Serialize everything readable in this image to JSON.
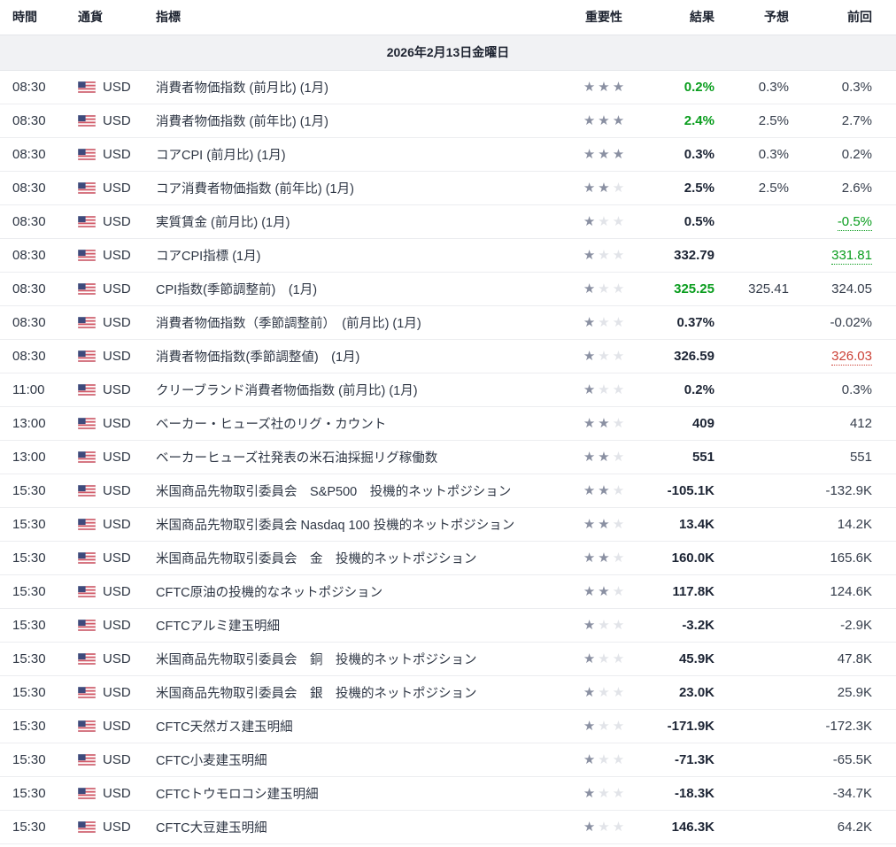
{
  "table": {
    "columns": {
      "time": "時間",
      "currency": "通貨",
      "indicator": "指標",
      "importance": "重要性",
      "actual": "結果",
      "forecast": "予想",
      "previous": "前回"
    },
    "date_header": "2026年2月13日金曜日",
    "star_glyph": "★",
    "flag_icon": "us-flag",
    "colors": {
      "positive_green": "#0a9d1e",
      "revised_red": "#cc4237",
      "star_on": "#8a90a2",
      "star_off": "#e2e4e9",
      "date_row_bg": "#f1f2f4"
    },
    "rows": [
      {
        "time": "08:30",
        "currency": "USD",
        "indicator": "消費者物価指数 (前月比) (1月)",
        "stars": 3,
        "actual": "0.2%",
        "actual_color": "green",
        "forecast": "0.3%",
        "previous": "0.3%",
        "previous_style": "normal"
      },
      {
        "time": "08:30",
        "currency": "USD",
        "indicator": "消費者物価指数 (前年比) (1月)",
        "stars": 3,
        "actual": "2.4%",
        "actual_color": "green",
        "forecast": "2.5%",
        "previous": "2.7%",
        "previous_style": "normal"
      },
      {
        "time": "08:30",
        "currency": "USD",
        "indicator": "コアCPI (前月比) (1月)",
        "stars": 3,
        "actual": "0.3%",
        "actual_color": "dark",
        "forecast": "0.3%",
        "previous": "0.2%",
        "previous_style": "normal"
      },
      {
        "time": "08:30",
        "currency": "USD",
        "indicator": "コア消費者物価指数 (前年比) (1月)",
        "stars": 2,
        "actual": "2.5%",
        "actual_color": "dark",
        "forecast": "2.5%",
        "previous": "2.6%",
        "previous_style": "normal"
      },
      {
        "time": "08:30",
        "currency": "USD",
        "indicator": "実質賃金 (前月比) (1月)",
        "stars": 1,
        "actual": "0.5%",
        "actual_color": "dark",
        "forecast": "",
        "previous": "-0.5%",
        "previous_style": "green-revised"
      },
      {
        "time": "08:30",
        "currency": "USD",
        "indicator": "コアCPI指標 (1月)",
        "stars": 1,
        "actual": "332.79",
        "actual_color": "dark",
        "forecast": "",
        "previous": "331.81",
        "previous_style": "green-revised"
      },
      {
        "time": "08:30",
        "currency": "USD",
        "indicator": "CPI指数(季節調整前)　(1月)",
        "stars": 1,
        "actual": "325.25",
        "actual_color": "green",
        "forecast": "325.41",
        "previous": "324.05",
        "previous_style": "normal"
      },
      {
        "time": "08:30",
        "currency": "USD",
        "indicator": "消費者物価指数（季節調整前）　(前月比) (1月)",
        "stars": 1,
        "actual": "0.37%",
        "actual_color": "dark",
        "forecast": "",
        "previous": "-0.02%",
        "previous_style": "normal"
      },
      {
        "time": "08:30",
        "currency": "USD",
        "indicator": "消費者物価指数(季節調整値)　(1月)",
        "stars": 1,
        "actual": "326.59",
        "actual_color": "dark",
        "forecast": "",
        "previous": "326.03",
        "previous_style": "red-revised"
      },
      {
        "time": "11:00",
        "currency": "USD",
        "indicator": "クリーブランド消費者物価指数 (前月比) (1月)",
        "stars": 1,
        "actual": "0.2%",
        "actual_color": "dark",
        "forecast": "",
        "previous": "0.3%",
        "previous_style": "normal"
      },
      {
        "time": "13:00",
        "currency": "USD",
        "indicator": "ベーカー・ヒューズ社のリグ・カウント",
        "stars": 2,
        "actual": "409",
        "actual_color": "dark",
        "forecast": "",
        "previous": "412",
        "previous_style": "normal"
      },
      {
        "time": "13:00",
        "currency": "USD",
        "indicator": "ベーカーヒューズ社発表の米石油採掘リグ稼働数",
        "stars": 2,
        "actual": "551",
        "actual_color": "dark",
        "forecast": "",
        "previous": "551",
        "previous_style": "normal"
      },
      {
        "time": "15:30",
        "currency": "USD",
        "indicator": "米国商品先物取引委員会　S&P500　投機的ネットポジション",
        "stars": 2,
        "actual": "-105.1K",
        "actual_color": "dark",
        "forecast": "",
        "previous": "-132.9K",
        "previous_style": "normal"
      },
      {
        "time": "15:30",
        "currency": "USD",
        "indicator": "米国商品先物取引委員会 Nasdaq 100 投機的ネットポジション",
        "stars": 2,
        "actual": "13.4K",
        "actual_color": "dark",
        "forecast": "",
        "previous": "14.2K",
        "previous_style": "normal"
      },
      {
        "time": "15:30",
        "currency": "USD",
        "indicator": "米国商品先物取引委員会　金　投機的ネットポジション",
        "stars": 2,
        "actual": "160.0K",
        "actual_color": "dark",
        "forecast": "",
        "previous": "165.6K",
        "previous_style": "normal"
      },
      {
        "time": "15:30",
        "currency": "USD",
        "indicator": "CFTC原油の投機的なネットポジション",
        "stars": 2,
        "actual": "117.8K",
        "actual_color": "dark",
        "forecast": "",
        "previous": "124.6K",
        "previous_style": "normal"
      },
      {
        "time": "15:30",
        "currency": "USD",
        "indicator": "CFTCアルミ建玉明細",
        "stars": 1,
        "actual": "-3.2K",
        "actual_color": "dark",
        "forecast": "",
        "previous": "-2.9K",
        "previous_style": "normal"
      },
      {
        "time": "15:30",
        "currency": "USD",
        "indicator": "米国商品先物取引委員会　銅　投機的ネットポジション",
        "stars": 1,
        "actual": "45.9K",
        "actual_color": "dark",
        "forecast": "",
        "previous": "47.8K",
        "previous_style": "normal"
      },
      {
        "time": "15:30",
        "currency": "USD",
        "indicator": "米国商品先物取引委員会　銀　投機的ネットポジション",
        "stars": 1,
        "actual": "23.0K",
        "actual_color": "dark",
        "forecast": "",
        "previous": "25.9K",
        "previous_style": "normal"
      },
      {
        "time": "15:30",
        "currency": "USD",
        "indicator": "CFTC天然ガス建玉明細",
        "stars": 1,
        "actual": "-171.9K",
        "actual_color": "dark",
        "forecast": "",
        "previous": "-172.3K",
        "previous_style": "normal"
      },
      {
        "time": "15:30",
        "currency": "USD",
        "indicator": "CFTC小麦建玉明細",
        "stars": 1,
        "actual": "-71.3K",
        "actual_color": "dark",
        "forecast": "",
        "previous": "-65.5K",
        "previous_style": "normal"
      },
      {
        "time": "15:30",
        "currency": "USD",
        "indicator": "CFTCトウモロコシ建玉明細",
        "stars": 1,
        "actual": "-18.3K",
        "actual_color": "dark",
        "forecast": "",
        "previous": "-34.7K",
        "previous_style": "normal"
      },
      {
        "time": "15:30",
        "currency": "USD",
        "indicator": "CFTC大豆建玉明細",
        "stars": 1,
        "actual": "146.3K",
        "actual_color": "dark",
        "forecast": "",
        "previous": "64.2K",
        "previous_style": "normal"
      }
    ]
  }
}
